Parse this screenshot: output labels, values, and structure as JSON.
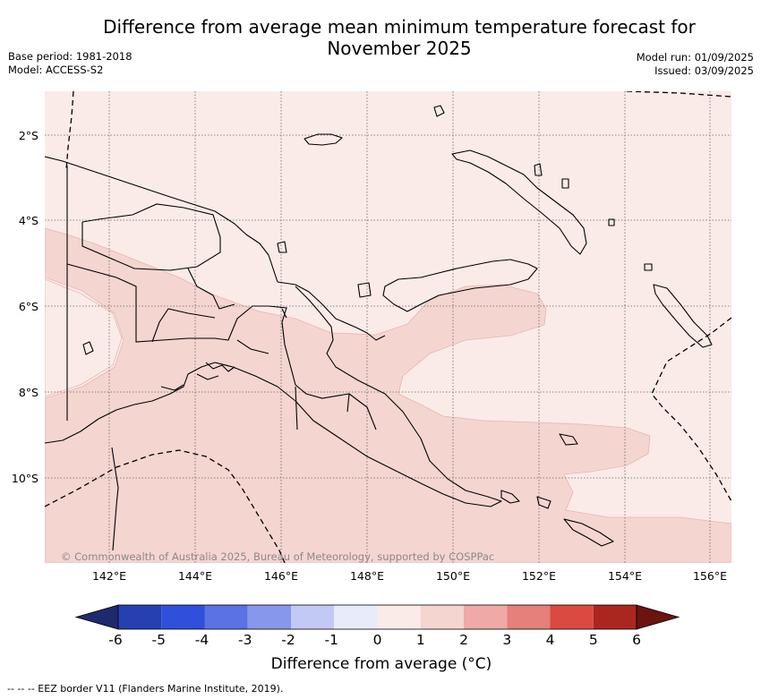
{
  "title": {
    "line1": "Difference from average mean minimum temperature forecast for",
    "line2": "November 2025"
  },
  "meta_left": {
    "base_period": "Base period: 1981-2018",
    "model": "Model: ACCESS-S2"
  },
  "meta_right": {
    "model_run": "Model run: 01/09/2025",
    "issued": "Issued: 03/09/2025"
  },
  "map": {
    "lat_ticks": [
      "2°S",
      "4°S",
      "6°S",
      "8°S",
      "10°S"
    ],
    "lon_ticks": [
      "142°E",
      "144°E",
      "146°E",
      "148°E",
      "150°E",
      "152°E",
      "154°E",
      "156°E"
    ],
    "copyright": "© Commonwealth of Australia 2025, Bureau of Meteorology, supported by COSPPac",
    "colors": {
      "class_0_1": "#fbebe8",
      "class_1_2": "#f5d5d0",
      "land_border": "#000000",
      "gridline": "#666666"
    }
  },
  "colorbar": {
    "tick_labels": [
      "-6",
      "-5",
      "-4",
      "-3",
      "-2",
      "-1",
      "0",
      "1",
      "2",
      "3",
      "4",
      "5",
      "6"
    ],
    "colors": [
      "#1f2a6e",
      "#2540b0",
      "#2f4fdc",
      "#5a72e4",
      "#8797ec",
      "#c2c9f4",
      "#e8ebfa",
      "#fbebe8",
      "#f5d5d0",
      "#efaaa5",
      "#e5807a",
      "#da4a40",
      "#ac2620",
      "#6b1410"
    ],
    "label": "Difference from average (°C)"
  },
  "footnote": "-- -- -- EEZ border V11 (Flanders Marine Institute, 2019)."
}
